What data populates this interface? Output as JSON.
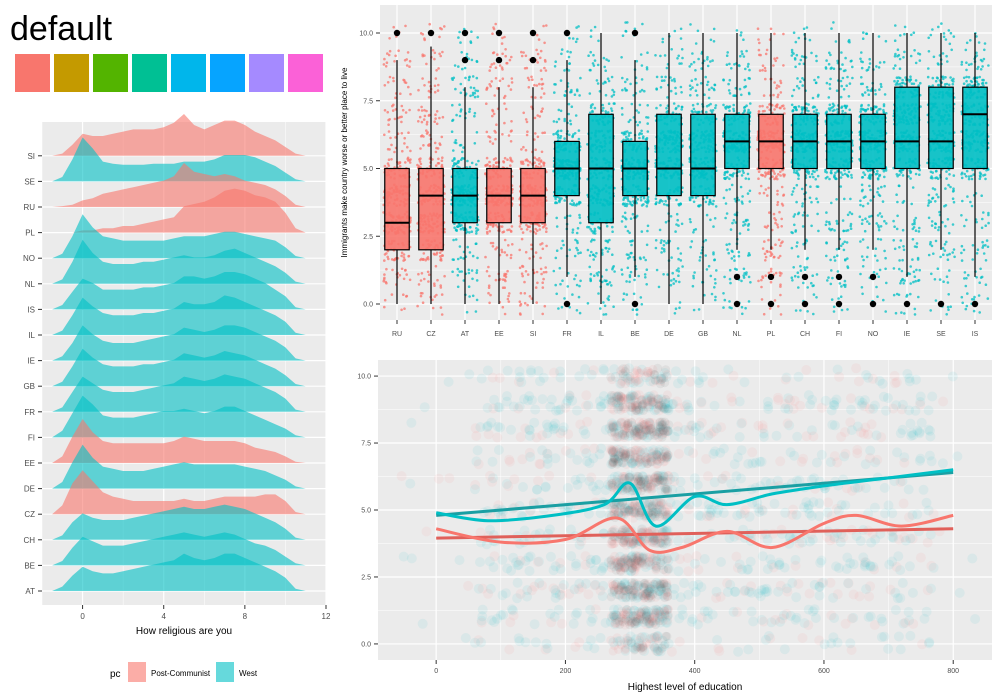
{
  "title": "default",
  "palette": [
    {
      "name": "swatch-1",
      "color": "#F8766D"
    },
    {
      "name": "swatch-2",
      "color": "#C49A00"
    },
    {
      "name": "swatch-3",
      "color": "#53B400"
    },
    {
      "name": "swatch-4",
      "color": "#00C094"
    },
    {
      "name": "swatch-5",
      "color": "#00B6EB"
    },
    {
      "name": "swatch-6",
      "color": "#06A4FF"
    },
    {
      "name": "swatch-7",
      "color": "#A58AFF"
    },
    {
      "name": "swatch-8",
      "color": "#FB61D7"
    }
  ],
  "colors": {
    "post_communist": "#F8766D",
    "west": "#00BFC4",
    "panel_bg": "#EBEBEB",
    "grid": "#FFFFFF"
  },
  "legend": {
    "title": "pc",
    "items": [
      "Post-Communist",
      "West"
    ]
  },
  "chart_data": [
    {
      "type": "area",
      "subtype": "ridgeline-density",
      "xlabel": "How religious are you",
      "xlim": [
        -2,
        12
      ],
      "xticks": [
        0,
        4,
        8,
        12
      ],
      "categories": [
        "AT",
        "BE",
        "CH",
        "CZ",
        "DE",
        "EE",
        "FI",
        "FR",
        "GB",
        "IE",
        "IL",
        "IS",
        "NL",
        "NO",
        "PL",
        "RU",
        "SE",
        "SI"
      ],
      "groups": {
        "AT": "West",
        "BE": "West",
        "CH": "West",
        "CZ": "Post-Communist",
        "DE": "West",
        "EE": "Post-Communist",
        "FI": "West",
        "FR": "West",
        "GB": "West",
        "IE": "West",
        "IL": "West",
        "IS": "West",
        "NL": "West",
        "NO": "West",
        "PL": "Post-Communist",
        "RU": "Post-Communist",
        "SE": "West",
        "SI": "Post-Communist"
      },
      "density_x": [
        -1.5,
        -1,
        -0.5,
        0,
        0.5,
        1,
        1.5,
        2,
        2.5,
        3,
        3.5,
        4,
        4.5,
        5,
        5.5,
        6,
        6.5,
        7,
        7.5,
        8,
        8.5,
        9,
        9.5,
        10,
        10.5,
        11
      ],
      "density_heights": {
        "SI": [
          0,
          0.05,
          0.25,
          0.5,
          0.45,
          0.45,
          0.5,
          0.55,
          0.6,
          0.6,
          0.6,
          0.65,
          0.75,
          0.95,
          0.7,
          0.6,
          0.7,
          0.8,
          0.8,
          0.7,
          0.55,
          0.45,
          0.35,
          0.2,
          0.05,
          0
        ],
        "SE": [
          0,
          0.1,
          0.5,
          1,
          0.75,
          0.45,
          0.4,
          0.38,
          0.38,
          0.38,
          0.4,
          0.4,
          0.4,
          0.45,
          0.45,
          0.45,
          0.5,
          0.6,
          0.6,
          0.6,
          0.55,
          0.45,
          0.35,
          0.2,
          0.05,
          0
        ],
        "RU": [
          0,
          0.02,
          0.05,
          0.15,
          0.2,
          0.3,
          0.35,
          0.4,
          0.45,
          0.5,
          0.55,
          0.6,
          0.7,
          1,
          0.8,
          0.75,
          0.7,
          0.75,
          0.7,
          0.6,
          0.55,
          0.5,
          0.4,
          0.25,
          0.05,
          0
        ],
        "PL": [
          0,
          0,
          0,
          0.05,
          0.05,
          0.1,
          0.1,
          0.15,
          0.15,
          0.2,
          0.25,
          0.3,
          0.35,
          0.6,
          0.65,
          0.7,
          0.8,
          0.95,
          1,
          0.95,
          0.85,
          0.8,
          0.7,
          0.45,
          0.1,
          0
        ],
        "NO": [
          0,
          0.1,
          0.5,
          1,
          0.7,
          0.5,
          0.45,
          0.4,
          0.4,
          0.4,
          0.4,
          0.4,
          0.45,
          0.5,
          0.5,
          0.5,
          0.55,
          0.6,
          0.6,
          0.55,
          0.5,
          0.45,
          0.4,
          0.25,
          0.05,
          0
        ],
        "NL": [
          0,
          0.1,
          0.5,
          1,
          0.7,
          0.5,
          0.45,
          0.45,
          0.45,
          0.5,
          0.5,
          0.55,
          0.6,
          0.65,
          0.6,
          0.6,
          0.65,
          0.75,
          0.8,
          0.7,
          0.6,
          0.5,
          0.4,
          0.25,
          0.05,
          0
        ],
        "IS": [
          0,
          0.1,
          0.4,
          0.7,
          0.6,
          0.45,
          0.45,
          0.45,
          0.45,
          0.5,
          0.5,
          0.55,
          0.6,
          0.75,
          0.75,
          0.7,
          0.75,
          0.85,
          0.85,
          0.8,
          0.7,
          0.6,
          0.45,
          0.3,
          0.05,
          0
        ],
        "IL": [
          0,
          0.1,
          0.45,
          0.85,
          0.65,
          0.5,
          0.45,
          0.45,
          0.45,
          0.5,
          0.5,
          0.55,
          0.6,
          0.75,
          0.7,
          0.7,
          0.75,
          0.9,
          0.85,
          0.75,
          0.65,
          0.55,
          0.45,
          0.3,
          0.05,
          0
        ],
        "IE": [
          0,
          0.1,
          0.4,
          0.8,
          0.6,
          0.45,
          0.4,
          0.4,
          0.4,
          0.45,
          0.5,
          0.55,
          0.6,
          0.75,
          0.7,
          0.65,
          0.7,
          0.8,
          0.8,
          0.75,
          0.65,
          0.55,
          0.45,
          0.3,
          0.05,
          0
        ],
        "GB": [
          0,
          0.1,
          0.45,
          0.85,
          0.65,
          0.5,
          0.45,
          0.45,
          0.45,
          0.5,
          0.5,
          0.55,
          0.6,
          0.75,
          0.7,
          0.65,
          0.7,
          0.8,
          0.75,
          0.7,
          0.6,
          0.5,
          0.4,
          0.25,
          0.05,
          0
        ],
        "FR": [
          0,
          0.1,
          0.45,
          0.8,
          0.65,
          0.5,
          0.45,
          0.45,
          0.45,
          0.5,
          0.55,
          0.6,
          0.65,
          0.8,
          0.75,
          0.7,
          0.75,
          0.85,
          0.8,
          0.75,
          0.65,
          0.55,
          0.45,
          0.3,
          0.05,
          0
        ],
        "FI": [
          0,
          0.15,
          0.55,
          0.95,
          0.75,
          0.5,
          0.45,
          0.45,
          0.45,
          0.5,
          0.55,
          0.6,
          0.6,
          0.65,
          0.6,
          0.55,
          0.6,
          0.7,
          0.7,
          0.6,
          0.5,
          0.4,
          0.3,
          0.2,
          0.05,
          0
        ],
        "EE": [
          0,
          0.15,
          0.6,
          1,
          0.7,
          0.5,
          0.45,
          0.45,
          0.45,
          0.45,
          0.45,
          0.45,
          0.5,
          0.6,
          0.55,
          0.5,
          0.5,
          0.5,
          0.5,
          0.45,
          0.35,
          0.3,
          0.25,
          0.15,
          0.03,
          0
        ],
        "DE": [
          0,
          0.15,
          0.6,
          1,
          0.7,
          0.5,
          0.45,
          0.4,
          0.4,
          0.4,
          0.45,
          0.5,
          0.55,
          0.6,
          0.55,
          0.55,
          0.55,
          0.55,
          0.55,
          0.5,
          0.45,
          0.4,
          0.3,
          0.2,
          0.05,
          0
        ],
        "CZ": [
          0,
          0.2,
          0.7,
          1,
          0.75,
          0.5,
          0.4,
          0.35,
          0.3,
          0.3,
          0.3,
          0.3,
          0.3,
          0.35,
          0.3,
          0.3,
          0.35,
          0.4,
          0.4,
          0.4,
          0.4,
          0.45,
          0.45,
          0.3,
          0.05,
          0
        ],
        "CH": [
          0,
          0.1,
          0.4,
          0.6,
          0.5,
          0.45,
          0.45,
          0.45,
          0.5,
          0.55,
          0.6,
          0.65,
          0.7,
          0.75,
          0.7,
          0.7,
          0.75,
          0.8,
          0.75,
          0.7,
          0.6,
          0.5,
          0.4,
          0.25,
          0.05,
          0
        ],
        "BE": [
          0,
          0.1,
          0.4,
          0.65,
          0.55,
          0.45,
          0.45,
          0.45,
          0.5,
          0.55,
          0.6,
          0.65,
          0.7,
          0.75,
          0.7,
          0.65,
          0.7,
          0.75,
          0.7,
          0.6,
          0.5,
          0.45,
          0.35,
          0.2,
          0.05,
          0
        ],
        "AT": [
          0,
          0.1,
          0.35,
          0.55,
          0.45,
          0.4,
          0.4,
          0.45,
          0.5,
          0.55,
          0.6,
          0.65,
          0.7,
          0.85,
          0.75,
          0.7,
          0.75,
          0.85,
          0.85,
          0.75,
          0.65,
          0.55,
          0.45,
          0.3,
          0.05,
          0
        ]
      }
    },
    {
      "type": "box",
      "subtype": "boxplot-with-jitter",
      "ylabel": "Immigrants make country worse or better place to live",
      "ylim": [
        -0.5,
        10.5
      ],
      "yticks": [
        0.0,
        2.5,
        5.0,
        7.5,
        10.0
      ],
      "ytick_labels": [
        "0.0",
        "2.5",
        "5.0",
        "7.5",
        "10.0"
      ],
      "categories": [
        "RU",
        "CZ",
        "AT",
        "EE",
        "SI",
        "FR",
        "IL",
        "BE",
        "DE",
        "GB",
        "NL",
        "PL",
        "CH",
        "FI",
        "NO",
        "IE",
        "SE",
        "IS"
      ],
      "groups": [
        "Post-Communist",
        "Post-Communist",
        "West",
        "Post-Communist",
        "Post-Communist",
        "West",
        "West",
        "West",
        "West",
        "West",
        "West",
        "Post-Communist",
        "West",
        "West",
        "West",
        "West",
        "West",
        "West"
      ],
      "boxes": [
        {
          "q1": 2,
          "median": 3,
          "q3": 5,
          "whisker_low": 0,
          "whisker_high": 9,
          "outliers": [
            10
          ]
        },
        {
          "q1": 2,
          "median": 4,
          "q3": 5,
          "whisker_low": 0,
          "whisker_high": 9.5,
          "outliers": [
            10
          ]
        },
        {
          "q1": 3,
          "median": 4,
          "q3": 5,
          "whisker_low": 0,
          "whisker_high": 8,
          "outliers": [
            9,
            10
          ]
        },
        {
          "q1": 3,
          "median": 4,
          "q3": 5,
          "whisker_low": 0,
          "whisker_high": 8,
          "outliers": [
            9,
            10
          ]
        },
        {
          "q1": 3,
          "median": 4,
          "q3": 5,
          "whisker_low": 0,
          "whisker_high": 8,
          "outliers": [
            9,
            10
          ]
        },
        {
          "q1": 4,
          "median": 5,
          "q3": 6,
          "whisker_low": 1,
          "whisker_high": 9,
          "outliers": [
            0,
            10
          ]
        },
        {
          "q1": 3,
          "median": 5,
          "q3": 7,
          "whisker_low": 0,
          "whisker_high": 10,
          "outliers": []
        },
        {
          "q1": 4,
          "median": 5,
          "q3": 6,
          "whisker_low": 1,
          "whisker_high": 9,
          "outliers": [
            0,
            10
          ]
        },
        {
          "q1": 4,
          "median": 5,
          "q3": 7,
          "whisker_low": 0,
          "whisker_high": 10,
          "outliers": []
        },
        {
          "q1": 4,
          "median": 5,
          "q3": 7,
          "whisker_low": 0,
          "whisker_high": 10,
          "outliers": []
        },
        {
          "q1": 5,
          "median": 6,
          "q3": 7,
          "whisker_low": 2,
          "whisker_high": 10,
          "outliers": [
            0,
            1
          ]
        },
        {
          "q1": 5,
          "median": 6,
          "q3": 7,
          "whisker_low": 2,
          "whisker_high": 10,
          "outliers": [
            0,
            1
          ]
        },
        {
          "q1": 5,
          "median": 6,
          "q3": 7,
          "whisker_low": 2,
          "whisker_high": 10,
          "outliers": [
            0,
            1
          ]
        },
        {
          "q1": 5,
          "median": 6,
          "q3": 7,
          "whisker_low": 2,
          "whisker_high": 10,
          "outliers": [
            0,
            1
          ]
        },
        {
          "q1": 5,
          "median": 6,
          "q3": 7,
          "whisker_low": 2,
          "whisker_high": 10,
          "outliers": [
            0,
            1
          ]
        },
        {
          "q1": 5,
          "median": 6,
          "q3": 8,
          "whisker_low": 1,
          "whisker_high": 10,
          "outliers": [
            0
          ]
        },
        {
          "q1": 5,
          "median": 6,
          "q3": 8,
          "whisker_low": 2,
          "whisker_high": 10,
          "outliers": [
            0
          ]
        },
        {
          "q1": 5,
          "median": 7,
          "q3": 8,
          "whisker_low": 1,
          "whisker_high": 10,
          "outliers": [
            0
          ]
        }
      ]
    },
    {
      "type": "scatter",
      "subtype": "scatter-with-smooth",
      "xlabel": "Highest level of education",
      "xlim": [
        -90,
        860
      ],
      "ylim": [
        -0.6,
        10.6
      ],
      "xticks": [
        0,
        200,
        400,
        600,
        800
      ],
      "yticks": [
        0.0,
        2.5,
        5.0,
        7.5,
        10.0
      ],
      "ytick_labels": [
        "0.0",
        "2.5",
        "5.0",
        "7.5",
        "10.0"
      ],
      "series": [
        {
          "name": "Post-Communist",
          "linear": [
            [
              0,
              3.95
            ],
            [
              800,
              4.3
            ]
          ],
          "loess": [
            [
              0,
              4.3
            ],
            [
              100,
              3.8
            ],
            [
              200,
              3.9
            ],
            [
              280,
              4.7
            ],
            [
              330,
              3.5
            ],
            [
              380,
              3.6
            ],
            [
              450,
              4.2
            ],
            [
              520,
              3.6
            ],
            [
              600,
              4.5
            ],
            [
              650,
              4.8
            ],
            [
              720,
              4.4
            ],
            [
              800,
              4.8
            ]
          ]
        },
        {
          "name": "West",
          "linear": [
            [
              0,
              4.8
            ],
            [
              800,
              6.4
            ]
          ],
          "loess": [
            [
              0,
              4.9
            ],
            [
              80,
              4.6
            ],
            [
              180,
              4.8
            ],
            [
              260,
              5.2
            ],
            [
              300,
              6.0
            ],
            [
              340,
              4.4
            ],
            [
              400,
              5.5
            ],
            [
              450,
              5.2
            ],
            [
              520,
              5.6
            ],
            [
              600,
              5.9
            ],
            [
              700,
              6.2
            ],
            [
              800,
              6.5
            ]
          ]
        }
      ]
    }
  ]
}
